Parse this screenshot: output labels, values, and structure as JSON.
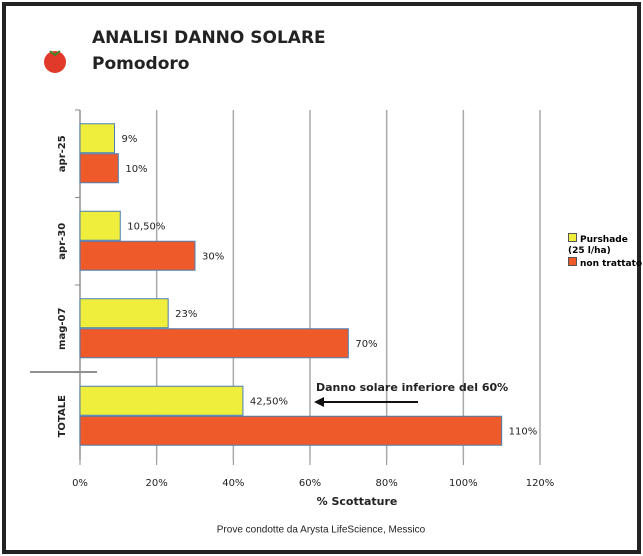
{
  "chart_data": {
    "type": "hbar",
    "title": "ANALISI DANNO SOLARE",
    "subtitle": "Pomodoro",
    "x_label": "% Scottature",
    "annotation": "Danno solare inferiore del 60%",
    "footer": "Prove condotte da Arysta LifeScience, Messico",
    "categories": [
      "apr-25",
      "apr-30",
      "mag-07",
      "TOTALE"
    ],
    "series": [
      {
        "name": "Purshade (25 l/ha)",
        "color": "#f0ee3c",
        "values": [
          9,
          10.5,
          23,
          42.5
        ],
        "value_labels": [
          "9%",
          "10,50%",
          "23%",
          "42,50%"
        ]
      },
      {
        "name": "non trattato",
        "color": "#ef5a2a",
        "values": [
          10,
          30,
          70,
          110
        ],
        "value_labels": [
          "10%",
          "30%",
          "70%",
          "110%"
        ]
      }
    ],
    "xlim": [
      0,
      120
    ],
    "xticks": [
      {
        "value": 0,
        "label": "0%"
      },
      {
        "value": 20,
        "label": "20%"
      },
      {
        "value": 40,
        "label": "40%"
      },
      {
        "value": 60,
        "label": "60%"
      },
      {
        "value": 80,
        "label": "80%"
      },
      {
        "value": 100,
        "label": "100%"
      },
      {
        "value": 120,
        "label": "120%"
      }
    ],
    "grid": true,
    "legend": "right"
  }
}
